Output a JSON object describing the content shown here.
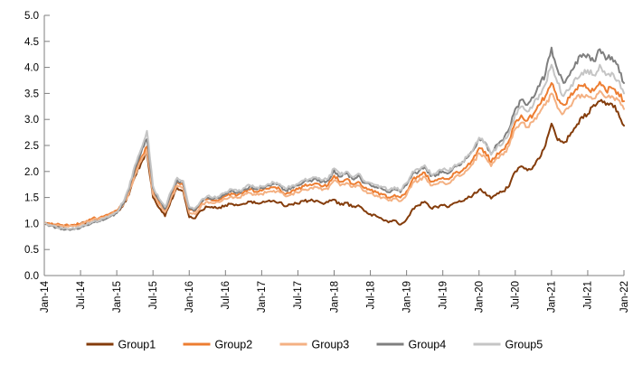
{
  "chart_data": {
    "type": "line",
    "title": "",
    "xlabel": "",
    "ylabel": "",
    "ylim": [
      0.0,
      5.0
    ],
    "grid": false,
    "legend_position": "bottom-center",
    "axis_color": "#7f7f7f",
    "label_color": "#000000",
    "background_color": "#ffffff",
    "y_tick_labels": [
      "0.0",
      "0.5",
      "1.0",
      "1.5",
      "2.0",
      "2.5",
      "3.0",
      "3.5",
      "4.0",
      "4.5",
      "5.0"
    ],
    "x_tick_labels": [
      "Jan-14",
      "Jul-14",
      "Jan-15",
      "Jul-15",
      "Jan-16",
      "Jul-16",
      "Jan-17",
      "Jul-17",
      "Jan-18",
      "Jul-18",
      "Jan-19",
      "Jul-19",
      "Jan-20",
      "Jul-20",
      "Jan-21",
      "Jul-21",
      "Jan-22"
    ],
    "x_unit": "monthly points from Jan-2014 to Jan-2022",
    "series": [
      {
        "name": "Group1",
        "color": "#843C0B",
        "values": [
          1.0,
          0.99,
          0.97,
          0.96,
          0.95,
          0.97,
          0.99,
          1.03,
          1.07,
          1.08,
          1.12,
          1.16,
          1.21,
          1.33,
          1.55,
          1.9,
          2.15,
          2.36,
          1.5,
          1.3,
          1.14,
          1.45,
          1.68,
          1.62,
          1.12,
          1.1,
          1.25,
          1.32,
          1.3,
          1.31,
          1.35,
          1.38,
          1.35,
          1.38,
          1.42,
          1.39,
          1.4,
          1.43,
          1.44,
          1.41,
          1.33,
          1.37,
          1.38,
          1.43,
          1.44,
          1.44,
          1.39,
          1.41,
          1.46,
          1.36,
          1.4,
          1.32,
          1.35,
          1.24,
          1.18,
          1.14,
          1.08,
          1.02,
          1.06,
          0.98,
          1.08,
          1.28,
          1.35,
          1.42,
          1.3,
          1.32,
          1.35,
          1.32,
          1.4,
          1.42,
          1.48,
          1.55,
          1.65,
          1.6,
          1.48,
          1.58,
          1.62,
          1.72,
          2.0,
          2.1,
          2.02,
          2.1,
          2.25,
          2.5,
          2.92,
          2.6,
          2.55,
          2.68,
          2.85,
          3.05,
          3.1,
          3.28,
          3.35,
          3.28,
          3.3,
          3.15,
          2.88
        ]
      },
      {
        "name": "Group2",
        "color": "#ED7D31",
        "values": [
          1.0,
          0.99,
          0.98,
          0.97,
          0.96,
          0.98,
          1.0,
          1.05,
          1.1,
          1.1,
          1.15,
          1.2,
          1.25,
          1.38,
          1.62,
          1.98,
          2.25,
          2.48,
          1.6,
          1.4,
          1.26,
          1.56,
          1.79,
          1.74,
          1.26,
          1.24,
          1.4,
          1.47,
          1.44,
          1.46,
          1.53,
          1.58,
          1.55,
          1.6,
          1.65,
          1.61,
          1.63,
          1.67,
          1.7,
          1.66,
          1.57,
          1.63,
          1.66,
          1.72,
          1.75,
          1.77,
          1.71,
          1.74,
          1.92,
          1.8,
          1.85,
          1.76,
          1.8,
          1.68,
          1.64,
          1.6,
          1.56,
          1.5,
          1.55,
          1.5,
          1.62,
          1.85,
          1.9,
          1.98,
          1.8,
          1.83,
          1.88,
          1.85,
          1.97,
          2.0,
          2.1,
          2.24,
          2.45,
          2.38,
          2.18,
          2.35,
          2.42,
          2.6,
          2.95,
          3.08,
          2.98,
          3.1,
          3.28,
          3.45,
          3.7,
          3.38,
          3.28,
          3.42,
          3.58,
          3.65,
          3.6,
          3.55,
          3.72,
          3.55,
          3.6,
          3.52,
          3.35
        ]
      },
      {
        "name": "Group3",
        "color": "#F4B183",
        "values": [
          1.0,
          0.98,
          0.96,
          0.95,
          0.94,
          0.96,
          0.98,
          1.03,
          1.07,
          1.08,
          1.12,
          1.17,
          1.22,
          1.34,
          1.58,
          1.94,
          2.2,
          2.42,
          1.56,
          1.36,
          1.22,
          1.5,
          1.73,
          1.68,
          1.2,
          1.18,
          1.35,
          1.42,
          1.39,
          1.41,
          1.47,
          1.52,
          1.49,
          1.54,
          1.59,
          1.55,
          1.57,
          1.61,
          1.63,
          1.6,
          1.52,
          1.57,
          1.59,
          1.65,
          1.68,
          1.7,
          1.64,
          1.66,
          1.83,
          1.73,
          1.78,
          1.7,
          1.73,
          1.62,
          1.58,
          1.54,
          1.5,
          1.44,
          1.48,
          1.43,
          1.55,
          1.78,
          1.82,
          1.9,
          1.73,
          1.76,
          1.8,
          1.77,
          1.89,
          1.92,
          2.02,
          2.15,
          2.35,
          2.28,
          2.1,
          2.26,
          2.32,
          2.5,
          2.82,
          2.94,
          2.85,
          2.96,
          3.12,
          3.28,
          3.5,
          3.22,
          3.12,
          3.25,
          3.4,
          3.48,
          3.45,
          3.4,
          3.55,
          3.42,
          3.45,
          3.38,
          3.2
        ]
      },
      {
        "name": "Group4",
        "color": "#7F7F7F",
        "values": [
          1.0,
          0.96,
          0.92,
          0.9,
          0.89,
          0.89,
          0.92,
          0.97,
          1.02,
          1.04,
          1.08,
          1.14,
          1.2,
          1.37,
          1.64,
          2.05,
          2.35,
          2.62,
          1.68,
          1.45,
          1.28,
          1.58,
          1.83,
          1.78,
          1.28,
          1.26,
          1.42,
          1.5,
          1.47,
          1.49,
          1.57,
          1.63,
          1.59,
          1.65,
          1.71,
          1.66,
          1.68,
          1.73,
          1.76,
          1.73,
          1.63,
          1.7,
          1.73,
          1.8,
          1.83,
          1.86,
          1.8,
          1.83,
          2.02,
          1.9,
          1.96,
          1.86,
          1.92,
          1.78,
          1.74,
          1.7,
          1.66,
          1.6,
          1.66,
          1.6,
          1.74,
          1.96,
          2.0,
          2.08,
          1.91,
          1.94,
          2.0,
          1.97,
          2.1,
          2.13,
          2.26,
          2.4,
          2.64,
          2.56,
          2.34,
          2.52,
          2.6,
          2.82,
          3.2,
          3.38,
          3.28,
          3.42,
          3.64,
          3.88,
          4.38,
          3.95,
          3.7,
          3.85,
          4.1,
          4.2,
          4.25,
          4.12,
          4.35,
          4.15,
          4.2,
          4.05,
          3.7
        ]
      },
      {
        "name": "Group5",
        "color": "#C5C5C5",
        "values": [
          1.0,
          0.97,
          0.93,
          0.91,
          0.9,
          0.9,
          0.93,
          0.98,
          1.03,
          1.05,
          1.1,
          1.16,
          1.22,
          1.4,
          1.68,
          2.12,
          2.42,
          2.78,
          1.72,
          1.48,
          1.32,
          1.62,
          1.88,
          1.82,
          1.32,
          1.3,
          1.45,
          1.53,
          1.5,
          1.52,
          1.6,
          1.66,
          1.62,
          1.68,
          1.74,
          1.69,
          1.71,
          1.76,
          1.79,
          1.76,
          1.66,
          1.73,
          1.76,
          1.83,
          1.86,
          1.89,
          1.83,
          1.86,
          2.06,
          1.94,
          2.0,
          1.9,
          1.96,
          1.82,
          1.78,
          1.74,
          1.7,
          1.64,
          1.7,
          1.64,
          1.78,
          2.0,
          2.04,
          2.12,
          1.95,
          1.98,
          2.04,
          2.0,
          2.13,
          2.16,
          2.28,
          2.42,
          2.65,
          2.55,
          2.32,
          2.48,
          2.55,
          2.75,
          3.1,
          3.25,
          3.15,
          3.28,
          3.48,
          3.68,
          4.05,
          3.7,
          3.45,
          3.58,
          3.8,
          3.9,
          3.95,
          3.85,
          4.05,
          3.85,
          3.9,
          3.75,
          3.5
        ]
      }
    ]
  }
}
